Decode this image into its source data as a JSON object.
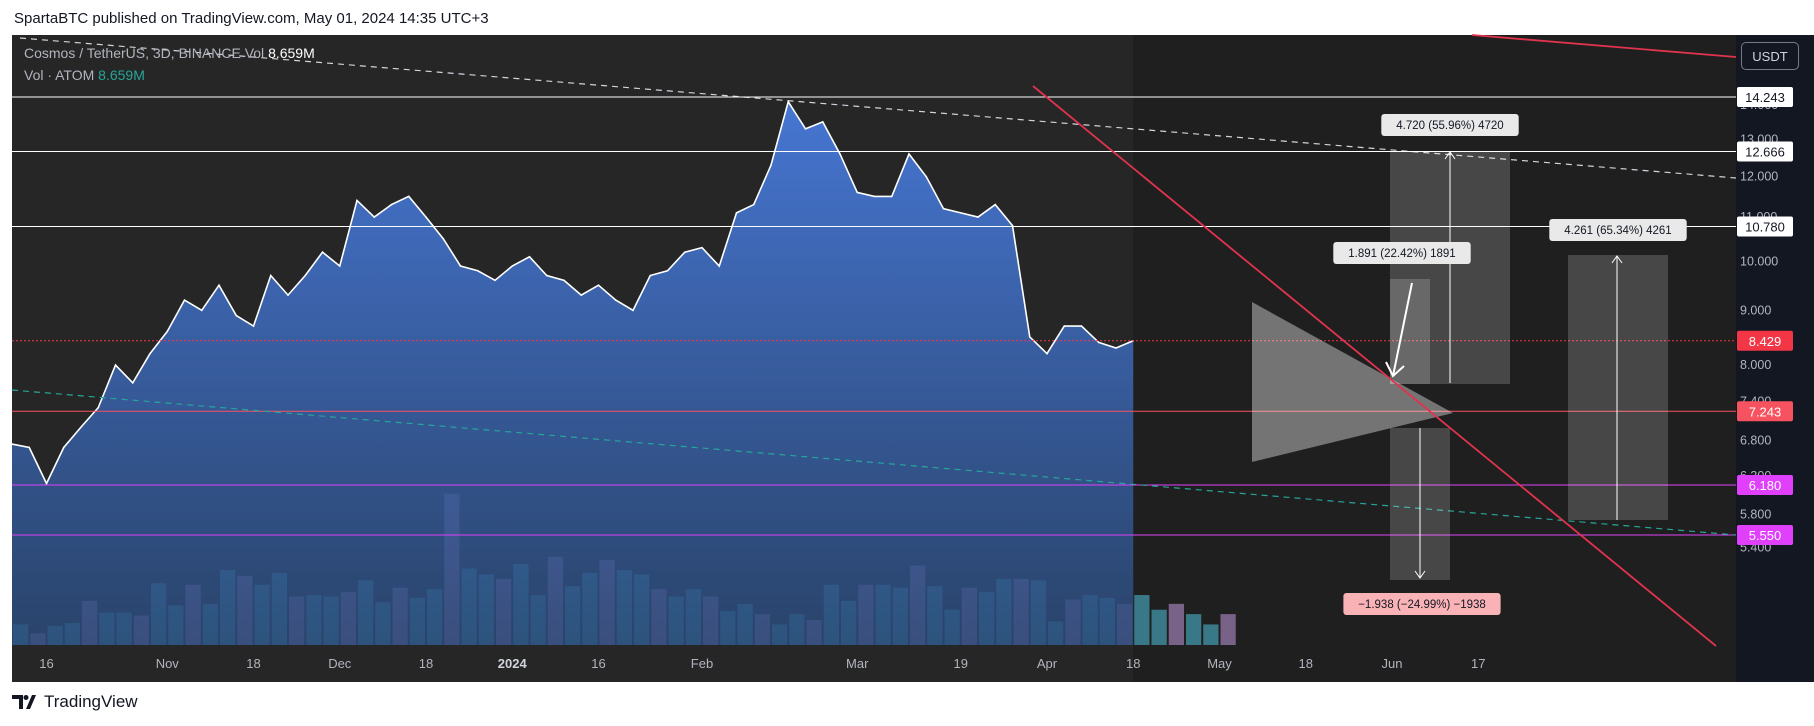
{
  "header": {
    "publisher": "SpartaBTC published on TradingView.com, May 01, 2024 14:35 UTC+3"
  },
  "legend": {
    "symbol": "Cosmos / TetherUS, 3D, BINANCE",
    "vol_prefix": "Vol",
    "vol_value": "8.659M",
    "vol_atom_label": "Vol · ATOM",
    "vol_atom_value": "8.659M"
  },
  "currency_button": "USDT",
  "footer": {
    "brand": "TradingView"
  },
  "colors": {
    "background": "#131722",
    "pane": "#262626",
    "area_top": "#4a7fe6",
    "area_bottom": "#2a4a7a",
    "line": "#ffffff",
    "vol_up": "#3e8a9a",
    "vol_down": "#8a6e9a",
    "downtrend": "#e0334e",
    "green_dashed": "#26a69a",
    "white_dashed": "#d1d4dc",
    "price_tag_red": "#f23645",
    "price_tag_pink": "#f7525f",
    "price_tag_magenta": "#e040fb"
  },
  "chart_data": {
    "type": "area",
    "title": "Cosmos / TetherUS, 3D, BINANCE",
    "y_scale": "log",
    "ylim": [
      5.2,
      16.0
    ],
    "x_tick_labels": [
      "16",
      "Nov",
      "18",
      "Dec",
      "18",
      "2024",
      "16",
      "Feb",
      "Mar",
      "19",
      "Apr",
      "18",
      "May",
      "18",
      "Jun",
      "17"
    ],
    "x_tick_index": [
      2,
      9,
      14,
      19,
      24,
      29,
      34,
      40,
      49,
      55,
      60,
      65,
      70,
      75,
      80,
      85
    ],
    "y_tick_labels": [
      "14.000",
      "13.000",
      "12.000",
      "11.000",
      "10.000",
      "9.000",
      "8.000",
      "7.400",
      "6.800",
      "6.300",
      "5.800",
      "5.400"
    ],
    "y_tick_values": [
      14.0,
      13.0,
      12.0,
      11.0,
      10.0,
      9.0,
      8.0,
      7.4,
      6.8,
      6.3,
      5.8,
      5.4
    ],
    "series": [
      {
        "type": "area",
        "values": [
          6.75,
          6.7,
          6.2,
          6.7,
          7.0,
          7.3,
          8.0,
          7.7,
          8.2,
          8.6,
          9.2,
          9.0,
          9.5,
          8.9,
          8.7,
          9.7,
          9.3,
          9.7,
          10.2,
          9.9,
          11.4,
          11.0,
          11.3,
          11.5,
          11.0,
          10.5,
          9.9,
          9.8,
          9.6,
          9.9,
          10.1,
          9.7,
          9.6,
          9.3,
          9.5,
          9.2,
          9.0,
          9.7,
          9.8,
          10.2,
          10.3,
          9.9,
          11.1,
          11.3,
          12.3,
          14.1,
          13.3,
          13.5,
          12.6,
          11.6,
          11.5,
          11.5,
          12.6,
          12.0,
          11.2,
          11.1,
          11.0,
          11.3,
          10.8,
          8.5,
          8.2,
          8.7,
          8.7,
          8.4,
          8.3,
          8.429
        ]
      },
      {
        "type": "bar",
        "name": "Vol · ATOM",
        "values": [
          14,
          8,
          13,
          15,
          30,
          22,
          22,
          20,
          42,
          27,
          41,
          28,
          51,
          47,
          41,
          49,
          33,
          34,
          33,
          36,
          44,
          29,
          39,
          32,
          38,
          103,
          52,
          48,
          45,
          55,
          34,
          60,
          40,
          49,
          58,
          51,
          48,
          38,
          33,
          38,
          33,
          23,
          28,
          21,
          14,
          21,
          17,
          41,
          30,
          41,
          41,
          39,
          54,
          40,
          24,
          39,
          36,
          45,
          45,
          44,
          16,
          31,
          34,
          32,
          28,
          34,
          24,
          28,
          21,
          14,
          21
        ]
      }
    ],
    "horizontal_levels": [
      14.243,
      12.666,
      10.78,
      8.429,
      7.243,
      6.18,
      5.55
    ],
    "price_tags": [
      "14.243",
      "12.666",
      "10.780",
      "8.429",
      "7.243",
      "6.180",
      "5.550"
    ],
    "measure_labels": [
      "4.720 (55.96%) 4720",
      "1.891 (22.42%) 1891",
      "4.261 (65.34%) 4261",
      "−1.938 (−24.99%) −1938"
    ]
  }
}
